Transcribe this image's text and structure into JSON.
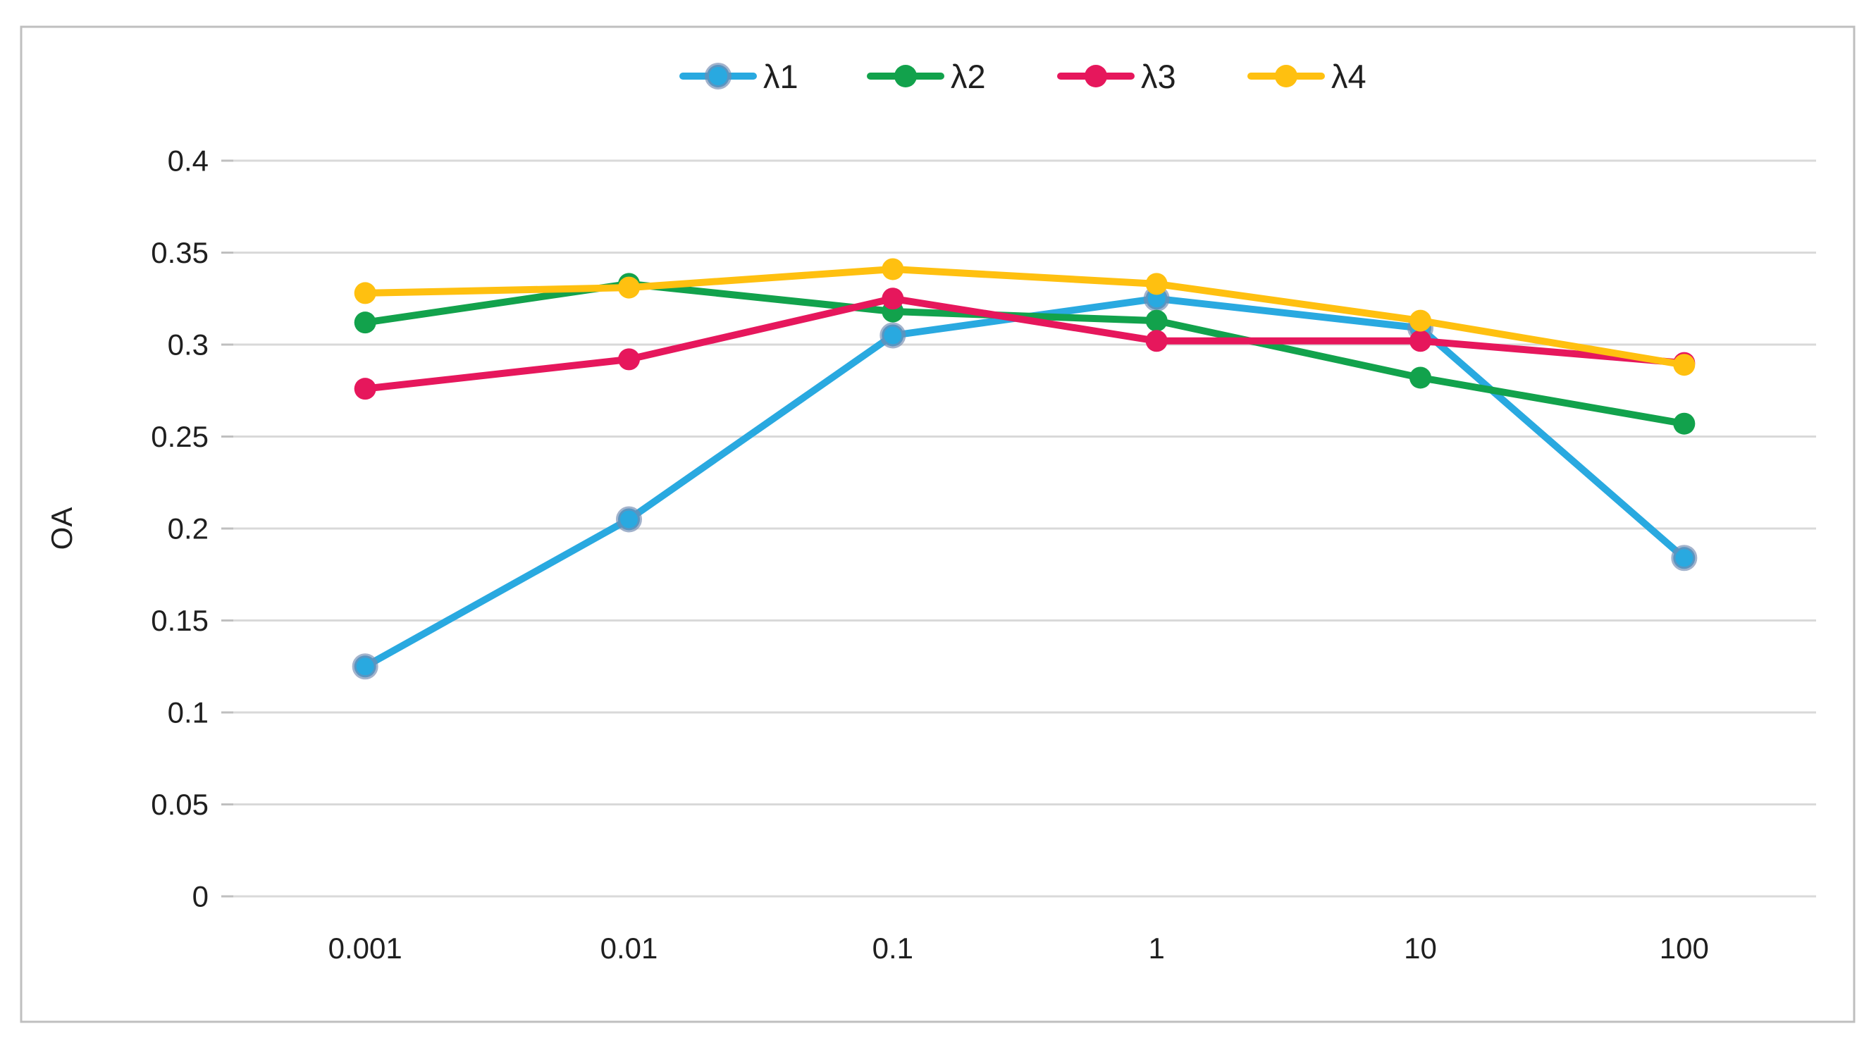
{
  "figure": {
    "background": "#ffffff",
    "border_color": "#bfbfbf",
    "text_color": "#1f1f1f"
  },
  "chart_data": {
    "type": "line",
    "title": "",
    "xlabel": "",
    "ylabel": "OA",
    "categories": [
      "0.001",
      "0.01",
      "0.1",
      "1",
      "10",
      "100"
    ],
    "series": [
      {
        "name": "λ1",
        "color": "#29A9E0",
        "marker_ring": "rgba(114,138,176,0.65)",
        "values": [
          0.125,
          0.205,
          0.305,
          0.325,
          0.309,
          0.184
        ]
      },
      {
        "name": "λ2",
        "color": "#12A24C",
        "marker_ring": "",
        "values": [
          0.312,
          0.333,
          0.318,
          0.313,
          0.282,
          0.257
        ]
      },
      {
        "name": "λ3",
        "color": "#E6175C",
        "marker_ring": "",
        "values": [
          0.276,
          0.292,
          0.325,
          0.302,
          0.302,
          0.29
        ]
      },
      {
        "name": "λ4",
        "color": "#FFC010",
        "marker_ring": "",
        "values": [
          0.328,
          0.331,
          0.341,
          0.333,
          0.313,
          0.289
        ]
      }
    ],
    "ylim": [
      0,
      0.4
    ],
    "ytick_step": 0.05,
    "ytick_labels": [
      "0",
      "0.05",
      "0.1",
      "0.15",
      "0.2",
      "0.25",
      "0.3",
      "0.35",
      "0.4"
    ],
    "grid": true,
    "gridline_color": "#d9d9d9",
    "legend_position": "top"
  }
}
